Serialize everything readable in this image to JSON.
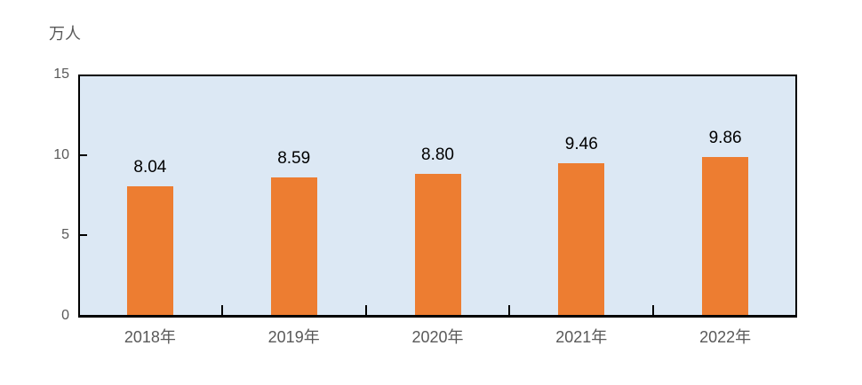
{
  "unit_label": "万人",
  "chart_data": {
    "type": "bar",
    "title": "",
    "xlabel": "",
    "ylabel": "万人",
    "categories": [
      "2018年",
      "2019年",
      "2020年",
      "2021年",
      "2022年"
    ],
    "values": [
      8.04,
      8.59,
      8.8,
      9.46,
      9.86
    ],
    "value_labels": [
      "8.04",
      "8.59",
      "8.80",
      "9.46",
      "9.86"
    ],
    "ylim": [
      0,
      15
    ],
    "yticks": [
      0,
      5,
      10,
      15
    ],
    "grid": false,
    "legend": "none",
    "layout_hints": {
      "bar_color": "#ED7D31",
      "plot_bg_color": "#DCE8F4",
      "axis_color": "#000000",
      "tick_label_color": "#595959",
      "data_label_color": "#000000",
      "page_bg_color": "#FFFFFF"
    }
  }
}
